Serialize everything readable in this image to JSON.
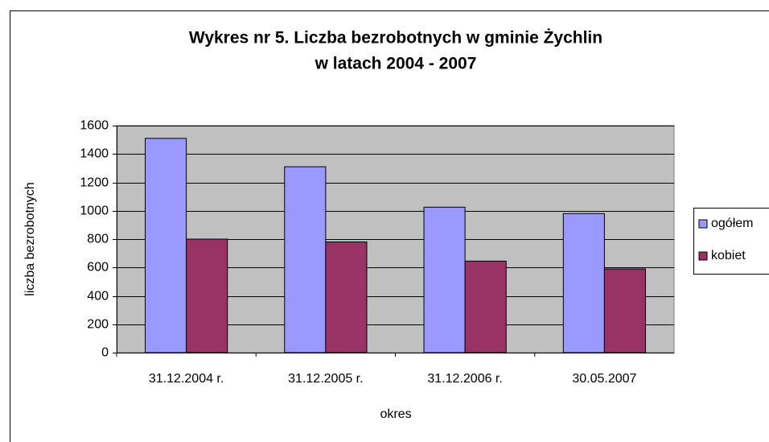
{
  "chart_data": {
    "type": "bar",
    "title": [
      "Wykres nr 5. Liczba bezrobotnych w gminie Żychlin",
      "w latach 2004 - 2007"
    ],
    "xlabel": "okres",
    "ylabel": "liczba bezrobotnych",
    "categories": [
      "31.12.2004 r.",
      "31.12.2005 r.",
      "31.12.2006 r.",
      "30.05.2007"
    ],
    "series": [
      {
        "name": "ogółem",
        "color": "#9999ff",
        "values": [
          1510,
          1310,
          1025,
          980
        ]
      },
      {
        "name": "kobiet",
        "color": "#993366",
        "values": [
          800,
          780,
          645,
          590
        ]
      }
    ],
    "ylim": [
      0,
      1600
    ],
    "yticks": [
      0,
      200,
      400,
      600,
      800,
      1000,
      1200,
      1400,
      1600
    ],
    "grid": true,
    "legend": "right"
  }
}
